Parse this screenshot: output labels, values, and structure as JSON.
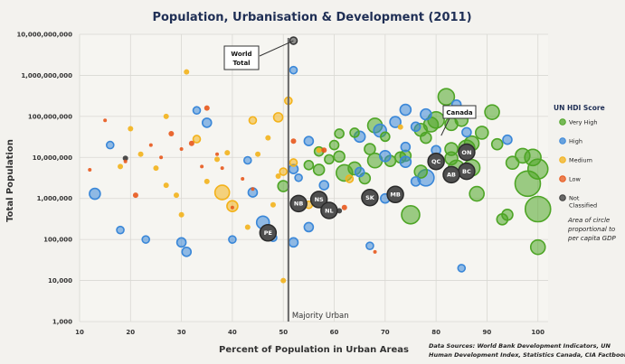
{
  "chart_data": {
    "type": "scatter",
    "title": "Population, Urbanisation & Development (2011)",
    "xlabel": "Percent of Population in Urban Areas",
    "ylabel": "Total Population",
    "xlim": [
      10,
      102
    ],
    "ylim": [
      1000,
      10000000000
    ],
    "yscale": "log",
    "xticks": [
      10,
      20,
      30,
      40,
      50,
      60,
      70,
      80,
      90,
      100
    ],
    "yticks": [
      {
        "value": 1000,
        "label": "1,000"
      },
      {
        "value": 10000,
        "label": "10,000"
      },
      {
        "value": 100000,
        "label": "100,000"
      },
      {
        "value": 1000000,
        "label": "1,000,000"
      },
      {
        "value": 10000000,
        "label": "10,000,000"
      },
      {
        "value": 100000000,
        "label": "100,000,000"
      },
      {
        "value": 1000000000,
        "label": "1,000,000,000"
      },
      {
        "value": 10000000000,
        "label": "10,000,000,000"
      }
    ],
    "grid": true,
    "reference_line": {
      "x": 51,
      "label": "Majority Urban"
    },
    "legend": {
      "title": "UN HDI Score",
      "placement": "right",
      "entries": [
        {
          "label": "Very High",
          "color": "#4ea526"
        },
        {
          "label": "High",
          "color": "#3a87d8"
        },
        {
          "label": "Medium",
          "color": "#f3b21b"
        },
        {
          "label": "Low",
          "color": "#e8581c"
        },
        {
          "label": "Not Classified",
          "color": "#3a3a3a"
        }
      ],
      "note": "Area of circle proportional to per capita GDP"
    },
    "source": "Data Sources: World Bank Development Indicators, UN Human Development Index, Statistics Canada, CIA Factbook",
    "callouts": [
      {
        "label": "World Total",
        "x": 52,
        "y": 7000000000
      },
      {
        "label": "Canada",
        "x": 81,
        "y": 34000000
      }
    ],
    "series": [
      {
        "name": "Very High",
        "color": "#4ea526",
        "points": [
          {
            "x": 82,
            "y": 300000000,
            "r": 9
          },
          {
            "x": 91,
            "y": 127000000,
            "r": 8
          },
          {
            "x": 80,
            "y": 82000000,
            "r": 9
          },
          {
            "x": 85,
            "y": 82000000,
            "r": 7
          },
          {
            "x": 79,
            "y": 63000000,
            "r": 8
          },
          {
            "x": 83,
            "y": 65000000,
            "r": 7
          },
          {
            "x": 68,
            "y": 60000000,
            "r": 8
          },
          {
            "x": 77,
            "y": 47000000,
            "r": 7
          },
          {
            "x": 89,
            "y": 40000000,
            "r": 7
          },
          {
            "x": 61,
            "y": 38000000,
            "r": 5
          },
          {
            "x": 87,
            "y": 22000000,
            "r": 8
          },
          {
            "x": 92,
            "y": 21000000,
            "r": 6
          },
          {
            "x": 83,
            "y": 16000000,
            "r": 7
          },
          {
            "x": 86,
            "y": 16700000,
            "r": 9
          },
          {
            "x": 67,
            "y": 16000000,
            "r": 6
          },
          {
            "x": 74,
            "y": 11000000,
            "r": 6
          },
          {
            "x": 97,
            "y": 11000000,
            "r": 8
          },
          {
            "x": 99,
            "y": 10000000,
            "r": 9
          },
          {
            "x": 61,
            "y": 10500000,
            "r": 6
          },
          {
            "x": 83,
            "y": 9500000,
            "r": 7
          },
          {
            "x": 73,
            "y": 10000000,
            "r": 6
          },
          {
            "x": 68,
            "y": 8400000,
            "r": 8
          },
          {
            "x": 95,
            "y": 7400000,
            "r": 7
          },
          {
            "x": 71,
            "y": 8200000,
            "r": 6
          },
          {
            "x": 100,
            "y": 5200000,
            "r": 11
          },
          {
            "x": 87,
            "y": 5600000,
            "r": 9
          },
          {
            "x": 84,
            "y": 5400000,
            "r": 9
          },
          {
            "x": 64,
            "y": 5400000,
            "r": 7
          },
          {
            "x": 77,
            "y": 4500000,
            "r": 7
          },
          {
            "x": 62,
            "y": 4200000,
            "r": 9
          },
          {
            "x": 98,
            "y": 2300000,
            "r": 14
          },
          {
            "x": 88,
            "y": 1300000,
            "r": 8
          },
          {
            "x": 100,
            "y": 550000,
            "r": 14
          },
          {
            "x": 75,
            "y": 400000,
            "r": 10
          },
          {
            "x": 94,
            "y": 400000,
            "r": 6
          },
          {
            "x": 93,
            "y": 310000,
            "r": 6
          },
          {
            "x": 100,
            "y": 65000,
            "r": 8
          },
          {
            "x": 50,
            "y": 2000000,
            "r": 6
          },
          {
            "x": 57,
            "y": 5000000,
            "r": 6
          },
          {
            "x": 66,
            "y": 3100000,
            "r": 6
          },
          {
            "x": 60,
            "y": 20000000,
            "r": 5
          },
          {
            "x": 64,
            "y": 40000000,
            "r": 5
          },
          {
            "x": 59,
            "y": 9000000,
            "r": 5
          },
          {
            "x": 55,
            "y": 6500000,
            "r": 5
          },
          {
            "x": 70,
            "y": 32000000,
            "r": 5
          },
          {
            "x": 78,
            "y": 30000000,
            "r": 6
          },
          {
            "x": 57,
            "y": 14000000,
            "r": 5
          }
        ]
      },
      {
        "name": "High",
        "color": "#3a87d8",
        "points": [
          {
            "x": 52,
            "y": 1340000000,
            "r": 4
          },
          {
            "x": 84,
            "y": 194000000,
            "r": 5
          },
          {
            "x": 78,
            "y": 112000000,
            "r": 6
          },
          {
            "x": 74,
            "y": 145000000,
            "r": 6
          },
          {
            "x": 72,
            "y": 73000000,
            "r": 6
          },
          {
            "x": 76,
            "y": 56000000,
            "r": 5
          },
          {
            "x": 69,
            "y": 45000000,
            "r": 7
          },
          {
            "x": 65,
            "y": 32000000,
            "r": 6
          },
          {
            "x": 55,
            "y": 25000000,
            "r": 5
          },
          {
            "x": 94,
            "y": 27000000,
            "r": 5
          },
          {
            "x": 86,
            "y": 41000000,
            "r": 5
          },
          {
            "x": 74,
            "y": 18000000,
            "r": 5
          },
          {
            "x": 80,
            "y": 15000000,
            "r": 5
          },
          {
            "x": 70,
            "y": 10800000,
            "r": 6
          },
          {
            "x": 74,
            "y": 7800000,
            "r": 6
          },
          {
            "x": 78,
            "y": 3200000,
            "r": 9
          },
          {
            "x": 65,
            "y": 4400000,
            "r": 5
          },
          {
            "x": 52,
            "y": 5200000,
            "r": 5
          },
          {
            "x": 58,
            "y": 2100000,
            "r": 5
          },
          {
            "x": 70,
            "y": 1000000,
            "r": 5
          },
          {
            "x": 76,
            "y": 2600000,
            "r": 5
          },
          {
            "x": 13,
            "y": 1300000,
            "r": 6
          },
          {
            "x": 44,
            "y": 1400000,
            "r": 5
          },
          {
            "x": 46,
            "y": 260000,
            "r": 7
          },
          {
            "x": 30,
            "y": 85000,
            "r": 5
          },
          {
            "x": 31,
            "y": 50000,
            "r": 5
          },
          {
            "x": 40,
            "y": 100000,
            "r": 4
          },
          {
            "x": 52,
            "y": 85000,
            "r": 5
          },
          {
            "x": 48,
            "y": 110000,
            "r": 4
          },
          {
            "x": 67,
            "y": 70000,
            "r": 4
          },
          {
            "x": 85,
            "y": 20000,
            "r": 4
          },
          {
            "x": 55,
            "y": 200000,
            "r": 5
          },
          {
            "x": 53,
            "y": 3200000,
            "r": 4
          },
          {
            "x": 35,
            "y": 70000000,
            "r": 5
          },
          {
            "x": 16,
            "y": 20000000,
            "r": 4
          },
          {
            "x": 18,
            "y": 170000,
            "r": 4
          },
          {
            "x": 23,
            "y": 100000,
            "r": 4
          },
          {
            "x": 33,
            "y": 140000000,
            "r": 4
          },
          {
            "x": 43,
            "y": 8500000,
            "r": 4
          }
        ]
      },
      {
        "name": "Medium",
        "color": "#f3b21b",
        "points": [
          {
            "x": 31,
            "y": 1210000000,
            "r": 3
          },
          {
            "x": 51,
            "y": 240000000,
            "r": 4
          },
          {
            "x": 49,
            "y": 95000000,
            "r": 5
          },
          {
            "x": 44,
            "y": 80000000,
            "r": 4
          },
          {
            "x": 38,
            "y": 1400000,
            "r": 8
          },
          {
            "x": 40,
            "y": 650000,
            "r": 6
          },
          {
            "x": 52,
            "y": 7500000,
            "r": 4
          },
          {
            "x": 50,
            "y": 4500000,
            "r": 4
          },
          {
            "x": 55,
            "y": 700000,
            "r": 4
          },
          {
            "x": 63,
            "y": 3000000,
            "r": 4
          },
          {
            "x": 30,
            "y": 400000,
            "r": 3
          },
          {
            "x": 37,
            "y": 9000000,
            "r": 3
          },
          {
            "x": 27,
            "y": 2100000,
            "r": 3
          },
          {
            "x": 33,
            "y": 28000000,
            "r": 4
          },
          {
            "x": 45,
            "y": 12000000,
            "r": 3
          },
          {
            "x": 25,
            "y": 5500000,
            "r": 3
          },
          {
            "x": 22,
            "y": 12000000,
            "r": 3
          },
          {
            "x": 39,
            "y": 13000000,
            "r": 3
          },
          {
            "x": 29,
            "y": 1200000,
            "r": 3
          },
          {
            "x": 47,
            "y": 30000000,
            "r": 3
          },
          {
            "x": 20,
            "y": 50000000,
            "r": 3
          },
          {
            "x": 27,
            "y": 100000000,
            "r": 3
          },
          {
            "x": 50,
            "y": 10000,
            "r": 3
          },
          {
            "x": 18,
            "y": 6000000,
            "r": 3
          },
          {
            "x": 43,
            "y": 200000,
            "r": 3
          },
          {
            "x": 57,
            "y": 15000000,
            "r": 3
          },
          {
            "x": 49,
            "y": 3500000,
            "r": 3
          },
          {
            "x": 35,
            "y": 2600000,
            "r": 3
          },
          {
            "x": 73,
            "y": 55000000,
            "r": 3
          },
          {
            "x": 48,
            "y": 700000,
            "r": 3
          }
        ]
      },
      {
        "name": "Low",
        "color": "#e8581c",
        "points": [
          {
            "x": 35,
            "y": 160000000,
            "r": 3
          },
          {
            "x": 15,
            "y": 80000000,
            "r": 2
          },
          {
            "x": 28,
            "y": 38000000,
            "r": 3
          },
          {
            "x": 32,
            "y": 22000000,
            "r": 3
          },
          {
            "x": 26,
            "y": 10000000,
            "r": 2
          },
          {
            "x": 38,
            "y": 5500000,
            "r": 2
          },
          {
            "x": 21,
            "y": 1200000,
            "r": 3
          },
          {
            "x": 40,
            "y": 600000,
            "r": 2
          },
          {
            "x": 12,
            "y": 5000000,
            "r": 2
          },
          {
            "x": 24,
            "y": 20000000,
            "r": 2
          },
          {
            "x": 30,
            "y": 16000000,
            "r": 2
          },
          {
            "x": 37,
            "y": 12000000,
            "r": 2
          },
          {
            "x": 52,
            "y": 25000000,
            "r": 3
          },
          {
            "x": 58,
            "y": 15000000,
            "r": 3
          },
          {
            "x": 62,
            "y": 600000,
            "r": 3
          },
          {
            "x": 44,
            "y": 1700000,
            "r": 2
          },
          {
            "x": 68,
            "y": 50000,
            "r": 2
          },
          {
            "x": 19,
            "y": 8000000,
            "r": 2
          },
          {
            "x": 34,
            "y": 6000000,
            "r": 2
          },
          {
            "x": 42,
            "y": 3000000,
            "r": 2
          }
        ]
      },
      {
        "name": "Not Classified",
        "color": "#3a3a3a",
        "points": [
          {
            "x": 52,
            "y": 7000000000,
            "r": 4
          },
          {
            "x": 19,
            "y": 9500000,
            "r": 3
          },
          {
            "x": 61,
            "y": 500000,
            "r": 3
          }
        ]
      }
    ],
    "provinces": [
      {
        "label": "ON",
        "x": 86,
        "y": 13400000
      },
      {
        "label": "QC",
        "x": 80,
        "y": 8000000
      },
      {
        "label": "BC",
        "x": 86,
        "y": 4600000
      },
      {
        "label": "AB",
        "x": 83,
        "y": 3800000
      },
      {
        "label": "MB",
        "x": 72,
        "y": 1250000
      },
      {
        "label": "SK",
        "x": 67,
        "y": 1050000
      },
      {
        "label": "NS",
        "x": 57,
        "y": 940000
      },
      {
        "label": "NB",
        "x": 53,
        "y": 750000
      },
      {
        "label": "NL",
        "x": 59,
        "y": 510000
      },
      {
        "label": "PE",
        "x": 47,
        "y": 145000
      }
    ]
  }
}
